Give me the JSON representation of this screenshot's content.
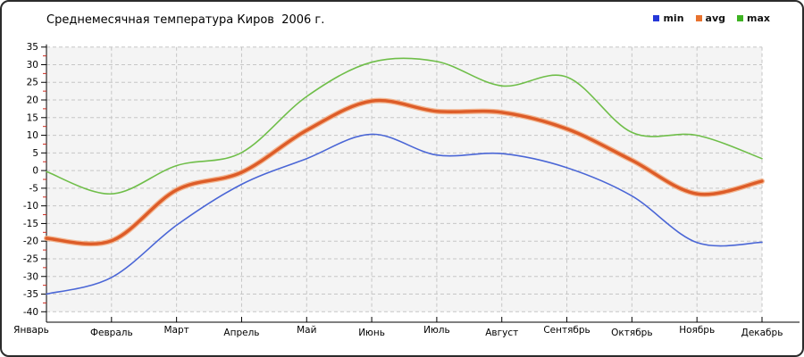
{
  "chart_data": {
    "type": "line",
    "title": "Среднемесячная температура Киров  2006 г.",
    "categories": [
      "Январь",
      "Февраль",
      "Март",
      "Апрель",
      "Май",
      "Июнь",
      "Июль",
      "Август",
      "Сентябрь",
      "Октябрь",
      "Ноябрь",
      "Декабрь"
    ],
    "series": [
      {
        "name": "min",
        "values": [
          -35.0,
          -30.3,
          -15.5,
          -3.9,
          3.4,
          10.3,
          4.4,
          4.8,
          0.8,
          -7.2,
          -20.4,
          -20.3
        ],
        "color": "#4a66d6",
        "legend_color": "#2538d8",
        "width": 1.6
      },
      {
        "name": "avg",
        "values": [
          -19.2,
          -19.9,
          -5.5,
          -0.5,
          11.4,
          19.7,
          16.8,
          16.5,
          11.8,
          2.9,
          -6.6,
          -3.0
        ],
        "color": "#dd5c28",
        "halo_color": "#f2ab80",
        "legend_color": "#e8722e",
        "width": 3.4
      },
      {
        "name": "max",
        "values": [
          -0.3,
          -6.6,
          1.4,
          5.1,
          21.0,
          30.7,
          30.9,
          24.0,
          26.5,
          10.8,
          10.0,
          3.4
        ],
        "color": "#6fbe49",
        "legend_color": "#3eb322",
        "width": 1.6
      }
    ],
    "ylim": [
      -40,
      35
    ],
    "ytick_step": 5,
    "ytick_minor_step": 2.5,
    "grid": "dashed",
    "legend_position": "top-right",
    "colors": {
      "plot_bg": "#f4f4f4",
      "grid": "#c6c6c6",
      "axis": "#000000",
      "minor_tick": "#cc2a1f",
      "tick_label": "#000000"
    }
  }
}
